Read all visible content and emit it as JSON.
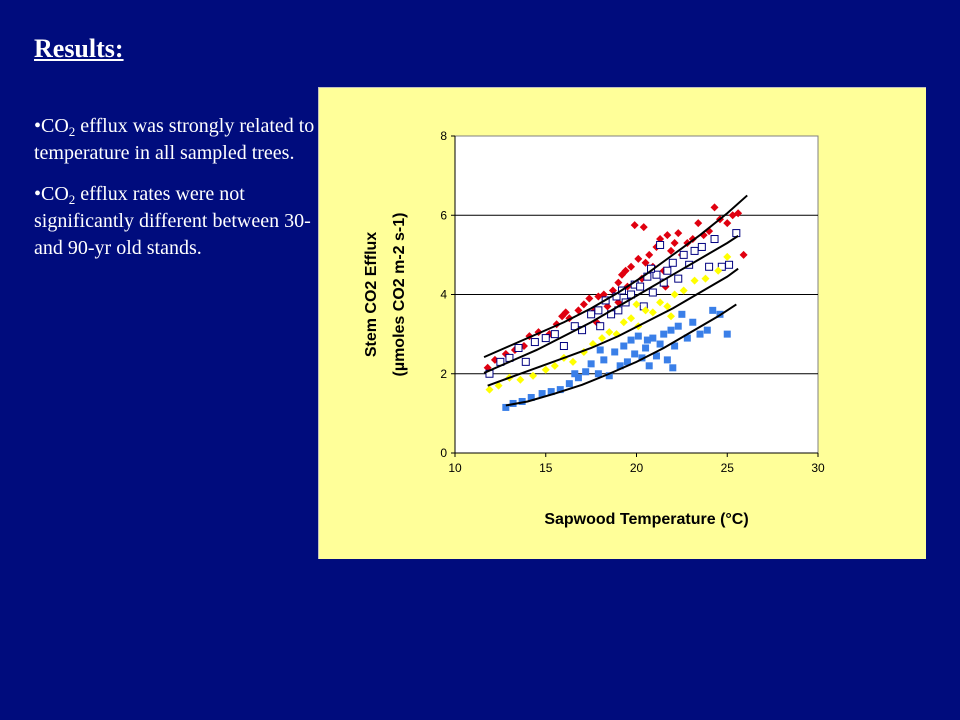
{
  "slide": {
    "title": "Results:",
    "bullets": [
      {
        "prefix": "•CO",
        "sub": "2",
        "rest": " efflux was strongly related to temperature in all sampled trees."
      },
      {
        "prefix": "•CO",
        "sub": "2",
        "rest": " efflux rates were not significantly different between 30- and 90-yr old stands."
      }
    ]
  },
  "chart_data": {
    "type": "scatter",
    "xlabel": "Sapwood Temperature (°C)",
    "ylabel_line1": "Stem CO2 Efflux",
    "ylabel_line2": "(µmoles CO2 m-2 s-1)",
    "xlim": [
      10,
      30
    ],
    "ylim": [
      0,
      8
    ],
    "x_ticks": [
      10,
      15,
      20,
      25,
      30
    ],
    "y_ticks": [
      0,
      2,
      4,
      6,
      8
    ],
    "grid": "horizontal",
    "series": [
      {
        "marker": "diamond",
        "color": "#e0000f",
        "points": [
          [
            11.8,
            2.15
          ],
          [
            12.2,
            2.35
          ],
          [
            12.8,
            2.5
          ],
          [
            13.3,
            2.6
          ],
          [
            13.8,
            2.7
          ],
          [
            14.1,
            2.95
          ],
          [
            14.6,
            3.05
          ],
          [
            15.2,
            3.0
          ],
          [
            15.6,
            3.25
          ],
          [
            15.9,
            3.45
          ],
          [
            16.3,
            3.4
          ],
          [
            16.8,
            3.6
          ],
          [
            17.1,
            3.75
          ],
          [
            17.4,
            3.9
          ],
          [
            17.7,
            3.6
          ],
          [
            17.9,
            3.95
          ],
          [
            18.2,
            4.0
          ],
          [
            18.4,
            3.7
          ],
          [
            18.7,
            4.1
          ],
          [
            19.0,
            4.3
          ],
          [
            19.2,
            4.5
          ],
          [
            19.4,
            4.6
          ],
          [
            19.5,
            4.2
          ],
          [
            19.7,
            4.7
          ],
          [
            19.9,
            5.75
          ],
          [
            20.1,
            4.9
          ],
          [
            20.3,
            4.4
          ],
          [
            20.5,
            4.8
          ],
          [
            20.7,
            5.0
          ],
          [
            20.9,
            4.7
          ],
          [
            21.1,
            5.2
          ],
          [
            21.3,
            5.4
          ],
          [
            21.5,
            4.6
          ],
          [
            21.7,
            5.5
          ],
          [
            21.9,
            5.1
          ],
          [
            22.1,
            5.3
          ],
          [
            22.3,
            5.55
          ],
          [
            22.5,
            5.0
          ],
          [
            22.8,
            5.3
          ],
          [
            23.1,
            5.4
          ],
          [
            23.4,
            5.8
          ],
          [
            23.7,
            5.5
          ],
          [
            24.0,
            5.6
          ],
          [
            24.3,
            6.2
          ],
          [
            24.6,
            5.9
          ],
          [
            25.0,
            5.8
          ],
          [
            25.3,
            6.0
          ],
          [
            25.6,
            6.05
          ],
          [
            25.9,
            5.0
          ],
          [
            20.4,
            5.7
          ],
          [
            21.6,
            4.2
          ],
          [
            19.0,
            3.8
          ],
          [
            17.8,
            3.3
          ],
          [
            16.1,
            3.55
          ]
        ]
      },
      {
        "marker": "square-open",
        "color": "#000080",
        "points": [
          [
            11.9,
            2.0
          ],
          [
            12.5,
            2.3
          ],
          [
            13.0,
            2.4
          ],
          [
            13.5,
            2.65
          ],
          [
            13.9,
            2.3
          ],
          [
            14.4,
            2.8
          ],
          [
            15.0,
            2.9
          ],
          [
            15.5,
            3.0
          ],
          [
            16.0,
            2.7
          ],
          [
            16.6,
            3.2
          ],
          [
            17.0,
            3.1
          ],
          [
            17.5,
            3.5
          ],
          [
            17.9,
            3.6
          ],
          [
            18.3,
            3.85
          ],
          [
            18.6,
            3.5
          ],
          [
            18.9,
            3.95
          ],
          [
            19.2,
            4.1
          ],
          [
            19.4,
            3.8
          ],
          [
            19.7,
            4.0
          ],
          [
            19.9,
            4.25
          ],
          [
            20.2,
            4.2
          ],
          [
            20.4,
            3.7
          ],
          [
            20.6,
            4.45
          ],
          [
            20.9,
            4.05
          ],
          [
            21.1,
            4.5
          ],
          [
            21.3,
            5.25
          ],
          [
            21.5,
            4.3
          ],
          [
            21.7,
            4.6
          ],
          [
            22.0,
            4.8
          ],
          [
            22.3,
            4.4
          ],
          [
            22.6,
            5.0
          ],
          [
            22.9,
            4.75
          ],
          [
            23.2,
            5.1
          ],
          [
            23.6,
            5.2
          ],
          [
            24.0,
            4.7
          ],
          [
            24.3,
            5.4
          ],
          [
            24.7,
            4.7
          ],
          [
            25.1,
            4.75
          ],
          [
            25.5,
            5.55
          ],
          [
            18.0,
            3.2
          ],
          [
            19.0,
            3.6
          ],
          [
            20.8,
            4.65
          ]
        ]
      },
      {
        "marker": "diamond",
        "color": "#ffff00",
        "points": [
          [
            11.9,
            1.6
          ],
          [
            12.4,
            1.7
          ],
          [
            13.0,
            1.9
          ],
          [
            13.6,
            1.85
          ],
          [
            14.3,
            1.95
          ],
          [
            15.0,
            2.1
          ],
          [
            15.5,
            2.2
          ],
          [
            16.0,
            2.4
          ],
          [
            16.5,
            2.3
          ],
          [
            17.1,
            2.55
          ],
          [
            17.6,
            2.75
          ],
          [
            18.1,
            2.9
          ],
          [
            18.5,
            3.05
          ],
          [
            18.9,
            3.0
          ],
          [
            19.3,
            3.3
          ],
          [
            19.7,
            3.4
          ],
          [
            20.1,
            3.2
          ],
          [
            20.5,
            3.6
          ],
          [
            20.9,
            3.55
          ],
          [
            21.3,
            3.8
          ],
          [
            21.7,
            3.7
          ],
          [
            22.1,
            4.0
          ],
          [
            22.6,
            4.1
          ],
          [
            23.2,
            4.35
          ],
          [
            23.8,
            4.4
          ],
          [
            24.5,
            4.6
          ],
          [
            25.0,
            4.95
          ],
          [
            21.9,
            3.45
          ],
          [
            20.0,
            3.75
          ]
        ]
      },
      {
        "marker": "square",
        "color": "#3a7fe8",
        "points": [
          [
            12.8,
            1.15
          ],
          [
            13.2,
            1.25
          ],
          [
            13.7,
            1.3
          ],
          [
            14.2,
            1.4
          ],
          [
            14.8,
            1.5
          ],
          [
            15.3,
            1.55
          ],
          [
            15.8,
            1.6
          ],
          [
            16.3,
            1.75
          ],
          [
            16.8,
            1.9
          ],
          [
            17.2,
            2.05
          ],
          [
            17.5,
            2.25
          ],
          [
            17.9,
            2.0
          ],
          [
            18.2,
            2.35
          ],
          [
            18.5,
            1.95
          ],
          [
            18.8,
            2.55
          ],
          [
            19.1,
            2.2
          ],
          [
            19.3,
            2.7
          ],
          [
            19.5,
            2.3
          ],
          [
            19.7,
            2.85
          ],
          [
            19.9,
            2.5
          ],
          [
            20.1,
            2.95
          ],
          [
            20.3,
            2.4
          ],
          [
            20.5,
            2.65
          ],
          [
            20.7,
            2.2
          ],
          [
            20.9,
            2.9
          ],
          [
            21.1,
            2.45
          ],
          [
            21.3,
            2.75
          ],
          [
            21.5,
            3.0
          ],
          [
            21.7,
            2.35
          ],
          [
            21.9,
            3.1
          ],
          [
            22.1,
            2.7
          ],
          [
            22.3,
            3.2
          ],
          [
            22.5,
            3.5
          ],
          [
            22.8,
            2.9
          ],
          [
            23.1,
            3.3
          ],
          [
            23.5,
            3.0
          ],
          [
            23.9,
            3.1
          ],
          [
            24.2,
            3.6
          ],
          [
            24.6,
            3.5
          ],
          [
            25.0,
            3.0
          ],
          [
            16.6,
            2.0
          ],
          [
            18.0,
            2.6
          ],
          [
            20.6,
            2.85
          ],
          [
            22.0,
            2.15
          ]
        ]
      }
    ],
    "trend_lines": [
      {
        "color": "#000000",
        "x": [
          11.6,
          13,
          14.5,
          16,
          17.5,
          19,
          20.5,
          22,
          23.5,
          25,
          26.1
        ],
        "y": [
          2.42,
          2.7,
          3.0,
          3.3,
          3.65,
          4.05,
          4.5,
          5.0,
          5.5,
          6.05,
          6.5
        ]
      },
      {
        "color": "#000000",
        "x": [
          11.6,
          13,
          14.5,
          16,
          17.5,
          19,
          20.5,
          22,
          23.5,
          25,
          25.6
        ],
        "y": [
          2.02,
          2.3,
          2.6,
          2.95,
          3.3,
          3.7,
          4.1,
          4.5,
          4.9,
          5.3,
          5.48
        ]
      },
      {
        "color": "#000000",
        "x": [
          11.8,
          13,
          14.5,
          16,
          17.5,
          19,
          20.5,
          22,
          23.5,
          25,
          25.6
        ],
        "y": [
          1.7,
          1.9,
          2.15,
          2.4,
          2.65,
          2.95,
          3.3,
          3.65,
          4.05,
          4.45,
          4.65
        ]
      },
      {
        "color": "#000000",
        "x": [
          12.8,
          14,
          15.5,
          17,
          18.5,
          20,
          21.5,
          23,
          24.5,
          25.5
        ],
        "y": [
          1.2,
          1.3,
          1.5,
          1.72,
          2.0,
          2.3,
          2.65,
          3.05,
          3.45,
          3.75
        ]
      }
    ]
  }
}
